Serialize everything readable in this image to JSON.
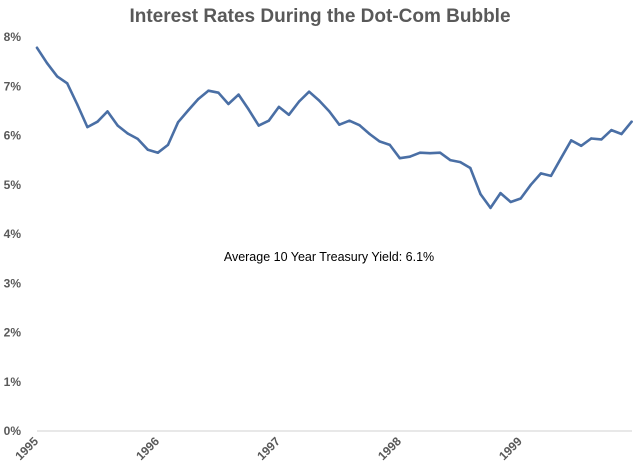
{
  "chart_data": {
    "type": "line",
    "title": "Interest Rates During the Dot-Com Bubble",
    "xlabel": "",
    "ylabel": "",
    "x_range": [
      1995.0,
      1999.92
    ],
    "ylim": [
      0,
      8
    ],
    "y_ticks": [
      0,
      1,
      2,
      3,
      4,
      5,
      6,
      7,
      8
    ],
    "y_tick_labels": [
      "0%",
      "1%",
      "2%",
      "3%",
      "4%",
      "5%",
      "6%",
      "7%",
      "8%"
    ],
    "x_ticks": [
      1995,
      1996,
      1997,
      1998,
      1999
    ],
    "x_tick_labels": [
      "1995",
      "1996",
      "1997",
      "1998",
      "1999"
    ],
    "grid": false,
    "annotation": "Average 10 Year Treasury Yield: 6.1%",
    "series": [
      {
        "name": "10 Year Treasury Yield",
        "color": "#4a6fa5",
        "x": [
          1995.0,
          1995.083,
          1995.167,
          1995.25,
          1995.333,
          1995.417,
          1995.5,
          1995.583,
          1995.667,
          1995.75,
          1995.833,
          1995.917,
          1996.0,
          1996.083,
          1996.167,
          1996.25,
          1996.333,
          1996.417,
          1996.5,
          1996.583,
          1996.667,
          1996.75,
          1996.833,
          1996.917,
          1997.0,
          1997.083,
          1997.167,
          1997.25,
          1997.333,
          1997.417,
          1997.5,
          1997.583,
          1997.667,
          1997.75,
          1997.833,
          1997.917,
          1998.0,
          1998.083,
          1998.167,
          1998.25,
          1998.333,
          1998.417,
          1998.5,
          1998.583,
          1998.667,
          1998.75,
          1998.833,
          1998.917,
          1999.0,
          1999.083,
          1999.167,
          1999.25,
          1999.333,
          1999.417,
          1999.5,
          1999.583,
          1999.667,
          1999.75,
          1999.833,
          1999.917
        ],
        "values": [
          7.78,
          7.47,
          7.2,
          7.06,
          6.63,
          6.17,
          6.28,
          6.49,
          6.2,
          6.04,
          5.93,
          5.71,
          5.65,
          5.81,
          6.27,
          6.51,
          6.74,
          6.91,
          6.87,
          6.64,
          6.83,
          6.53,
          6.2,
          6.3,
          6.58,
          6.42,
          6.69,
          6.89,
          6.71,
          6.49,
          6.22,
          6.3,
          6.21,
          6.03,
          5.88,
          5.81,
          5.54,
          5.57,
          5.65,
          5.64,
          5.65,
          5.5,
          5.46,
          5.34,
          4.81,
          4.53,
          4.83,
          4.65,
          4.72,
          5.0,
          5.23,
          5.18,
          5.54,
          5.9,
          5.79,
          5.94,
          5.92,
          6.11,
          6.03,
          6.28
        ]
      }
    ]
  }
}
